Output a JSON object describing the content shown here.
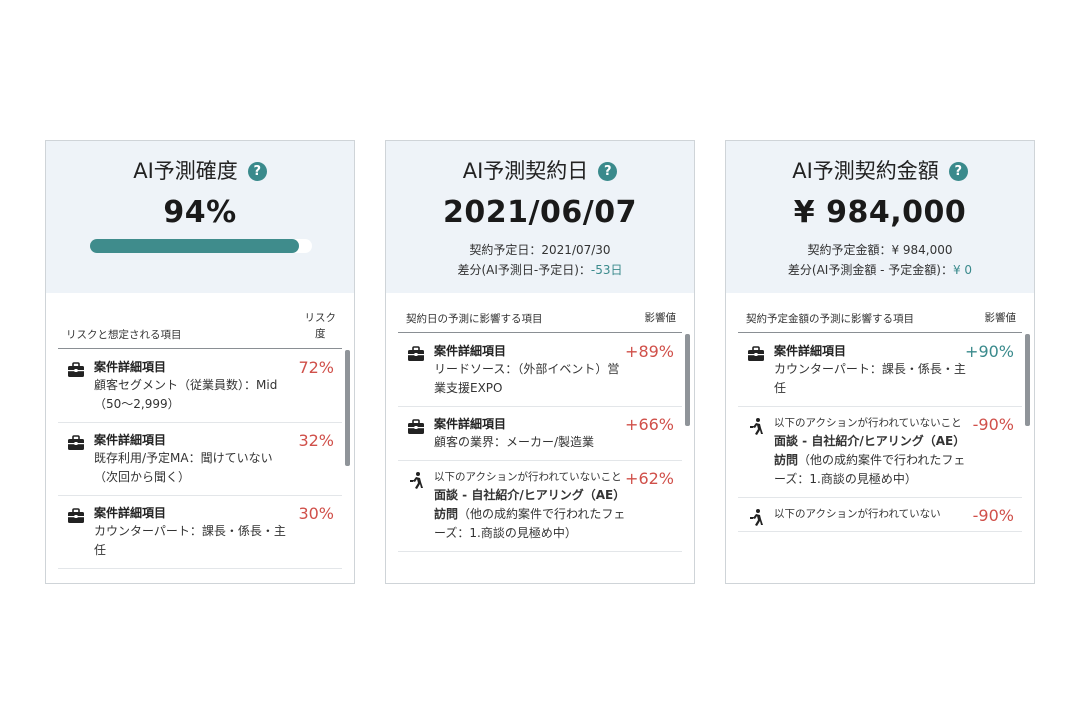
{
  "cards": {
    "probability": {
      "title": "AI予測確度",
      "value": "94%",
      "progress": 0.94,
      "list_label": "リスクと想定される項目",
      "list_col": [
        "リスク",
        "度"
      ],
      "rows": [
        {
          "icon": "briefcase-icon",
          "title": "案件詳細項目",
          "detail": "顧客セグメント（従業員数）：Mid（50〜2,999）",
          "value": "72%"
        },
        {
          "icon": "briefcase-icon",
          "title": "案件詳細項目",
          "detail": "既存利用/予定MA：聞けていない（次回から聞く）",
          "value": "32%"
        },
        {
          "icon": "briefcase-icon",
          "title": "案件詳細項目",
          "detail": "カウンターパート：課長・係長・主任",
          "value": "30%"
        }
      ]
    },
    "date": {
      "title": "AI予測契約日",
      "value": "2021/06/07",
      "sub1": "契約予定日：2021/07/30",
      "sub2_prefix": "差分(AI予測日-予定日)：",
      "sub2_value": "-53日",
      "list_label": "契約日の予測に影響する項目",
      "list_col": "影響値",
      "rows": [
        {
          "icon": "briefcase-icon",
          "title": "案件詳細項目",
          "detail": "リードソース：（外部イベント）営業支援EXPO",
          "value": "+89%"
        },
        {
          "icon": "briefcase-icon",
          "title": "案件詳細項目",
          "detail": "顧客の業界：メーカー/製造業",
          "value": "+66%"
        },
        {
          "icon": "running-person-icon",
          "small": "以下のアクションが行われていないこと",
          "bold": "面談 - 自社紹介/ヒアリング（AE）訪問",
          "detail": "（他の成約案件で行われたフェーズ：1.商談の見極め中）",
          "value": "+62%"
        }
      ]
    },
    "amount": {
      "title": "AI予測契約金額",
      "value": "¥ 984,000",
      "sub1": "契約予定金額：¥ 984,000",
      "sub2_prefix": "差分(AI予測金額 - 予定金額)：",
      "sub2_value": "¥ 0",
      "list_label": "契約予定金額の予測に影響する項目",
      "list_col": "影響値",
      "rows": [
        {
          "icon": "briefcase-icon",
          "title": "案件詳細項目",
          "detail": "カウンターパート：課長・係長・主任",
          "value": "+90%"
        },
        {
          "icon": "running-person-icon",
          "small": "以下のアクションが行われていないこと",
          "bold": "面談 - 自社紹介/ヒアリング（AE）訪問",
          "detail": "（他の成約案件で行われたフェーズ：1.商談の見極め中）",
          "value": "-90%"
        },
        {
          "icon": "running-person-icon",
          "small": "以下のアクションが行われていない",
          "value": "-90%"
        }
      ]
    }
  },
  "help_glyph": "?",
  "colors": {
    "accent": "#3a8a8c",
    "negative": "#d0504a",
    "header_bg": "#eef3f8"
  }
}
